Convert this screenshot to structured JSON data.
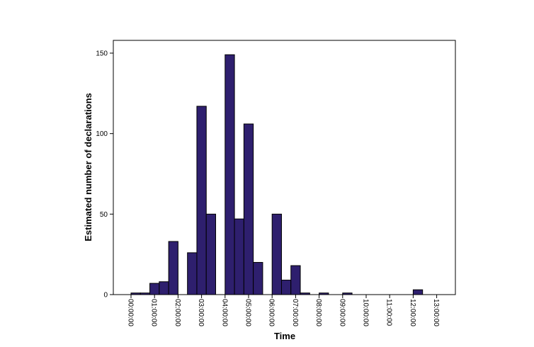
{
  "chart_data": {
    "type": "bar",
    "title": "",
    "xlabel": "Time",
    "ylabel": "Estimated number of declarations",
    "ylim": [
      0,
      158
    ],
    "xlim": [
      0,
      13.5
    ],
    "grid": false,
    "bar_color": "#2e1f6e",
    "bar_edge_color": "#000000",
    "y_ticks": [
      0,
      50,
      100,
      150
    ],
    "x_ticks": [
      "00:00:00",
      "01:00:00",
      "02:00:00",
      "03:00:00",
      "04:00:00",
      "05:00:00",
      "06:00:00",
      "07:00:00",
      "08:00:00",
      "09:00:00",
      "10:00:00",
      "11:00:00",
      "12:00:00",
      "13:00:00"
    ],
    "bin_width_hours": 0.4,
    "bins": [
      {
        "start": 0.0,
        "value": 1
      },
      {
        "start": 0.4,
        "value": 1
      },
      {
        "start": 0.8,
        "value": 7
      },
      {
        "start": 1.2,
        "value": 8
      },
      {
        "start": 1.6,
        "value": 33
      },
      {
        "start": 2.4,
        "value": 26
      },
      {
        "start": 2.8,
        "value": 117
      },
      {
        "start": 3.2,
        "value": 50
      },
      {
        "start": 4.0,
        "value": 149
      },
      {
        "start": 4.4,
        "value": 47
      },
      {
        "start": 4.8,
        "value": 106
      },
      {
        "start": 5.2,
        "value": 20
      },
      {
        "start": 6.0,
        "value": 50
      },
      {
        "start": 6.4,
        "value": 9
      },
      {
        "start": 6.8,
        "value": 18
      },
      {
        "start": 7.2,
        "value": 1
      },
      {
        "start": 8.0,
        "value": 1
      },
      {
        "start": 9.0,
        "value": 1
      },
      {
        "start": 12.0,
        "value": 3
      }
    ]
  }
}
